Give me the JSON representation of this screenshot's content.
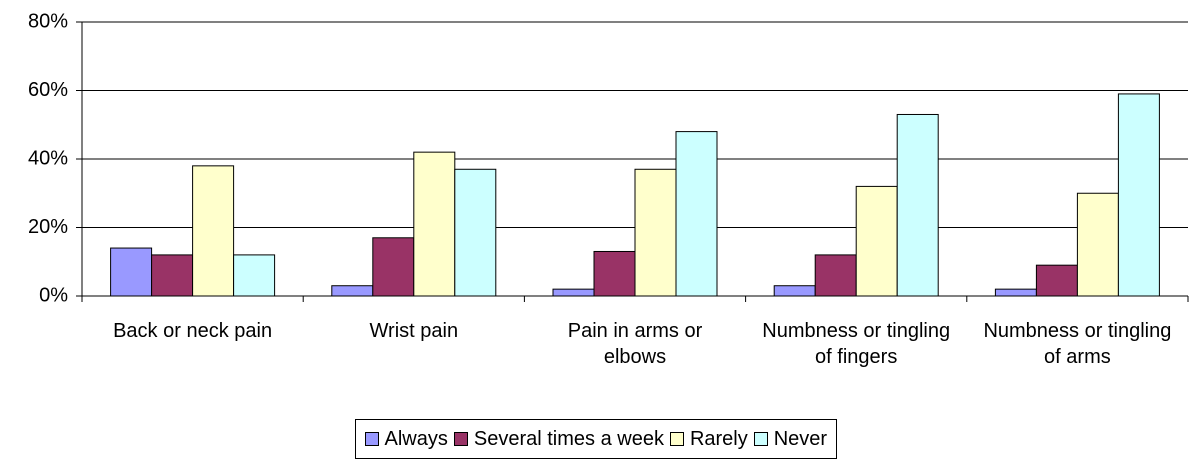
{
  "chart_data": {
    "type": "bar",
    "categories": [
      "Back or neck pain",
      "Wrist pain",
      "Pain in arms or elbows",
      "Numbness or tingling of fingers",
      "Numbness or tingling of arms"
    ],
    "series": [
      {
        "name": "Always",
        "color": "#9999ff",
        "values": [
          14,
          3,
          2,
          3,
          2
        ]
      },
      {
        "name": "Several times a week",
        "color": "#993366",
        "values": [
          12,
          17,
          13,
          12,
          9
        ]
      },
      {
        "name": "Rarely",
        "color": "#ffffcc",
        "values": [
          38,
          42,
          37,
          32,
          30
        ]
      },
      {
        "name": "Never",
        "color": "#ccffff",
        "values": [
          12,
          37,
          48,
          53,
          59
        ]
      }
    ],
    "ylim": [
      0,
      80
    ],
    "yticks": [
      {
        "value": 0,
        "label": "0%"
      },
      {
        "value": 20,
        "label": "20%"
      },
      {
        "value": 40,
        "label": "40%"
      },
      {
        "value": 60,
        "label": "60%"
      },
      {
        "value": 80,
        "label": "80%"
      }
    ],
    "grid": true,
    "legend": "bottom"
  }
}
